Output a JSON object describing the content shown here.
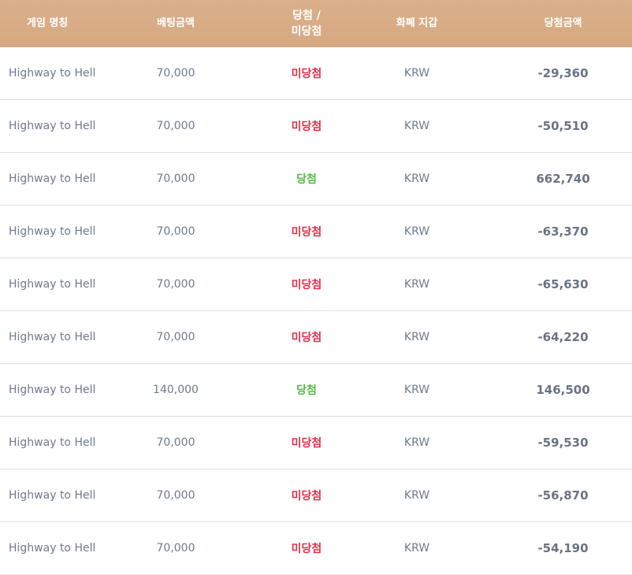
{
  "header": {
    "game_name": "게임 명칭",
    "bet_amount": "베팅금액",
    "result_line1": "당첨 /",
    "result_line2": "미당첨",
    "currency_wallet": "화폐 지갑",
    "win_amount": "당첨금액"
  },
  "colors": {
    "header_bg": "#d6a982",
    "win": "#54b948",
    "lose": "#e2304a"
  },
  "rows": [
    {
      "game": "Highway to Hell",
      "bet": "70,000",
      "result": "미당첨",
      "status": "lose",
      "currency": "KRW",
      "amount": "-29,360"
    },
    {
      "game": "Highway to Hell",
      "bet": "70,000",
      "result": "미당첨",
      "status": "lose",
      "currency": "KRW",
      "amount": "-50,510"
    },
    {
      "game": "Highway to Hell",
      "bet": "70,000",
      "result": "당첨",
      "status": "win",
      "currency": "KRW",
      "amount": "662,740"
    },
    {
      "game": "Highway to Hell",
      "bet": "70,000",
      "result": "미당첨",
      "status": "lose",
      "currency": "KRW",
      "amount": "-63,370"
    },
    {
      "game": "Highway to Hell",
      "bet": "70,000",
      "result": "미당첨",
      "status": "lose",
      "currency": "KRW",
      "amount": "-65,630"
    },
    {
      "game": "Highway to Hell",
      "bet": "70,000",
      "result": "미당첨",
      "status": "lose",
      "currency": "KRW",
      "amount": "-64,220"
    },
    {
      "game": "Highway to Hell",
      "bet": "140,000",
      "result": "당첨",
      "status": "win",
      "currency": "KRW",
      "amount": "146,500"
    },
    {
      "game": "Highway to Hell",
      "bet": "70,000",
      "result": "미당첨",
      "status": "lose",
      "currency": "KRW",
      "amount": "-59,530"
    },
    {
      "game": "Highway to Hell",
      "bet": "70,000",
      "result": "미당첨",
      "status": "lose",
      "currency": "KRW",
      "amount": "-56,870"
    },
    {
      "game": "Highway to Hell",
      "bet": "70,000",
      "result": "미당첨",
      "status": "lose",
      "currency": "KRW",
      "amount": "-54,190"
    }
  ]
}
